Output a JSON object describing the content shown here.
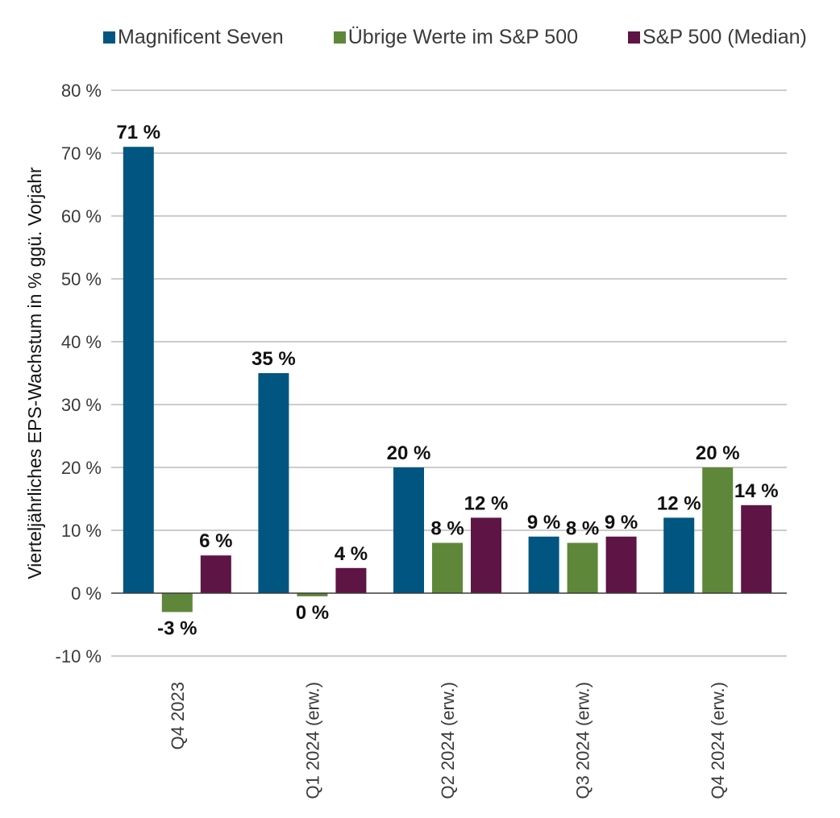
{
  "chart_data": {
    "type": "bar",
    "categories": [
      "Q4 2023",
      "Q1 2024 (erw.)",
      "Q2 2024 (erw.)",
      "Q3 2024 (erw.)",
      "Q4 2024 (erw.)"
    ],
    "series": [
      {
        "name": "Magnificent Seven",
        "color": "#005680",
        "values": [
          71,
          35,
          20,
          9,
          12
        ],
        "labels": [
          "71 %",
          "35 %",
          "20 %",
          "9 %",
          "12 %"
        ]
      },
      {
        "name": "Übrige Werte im S&P 500",
        "color": "#5f873a",
        "values": [
          -3,
          -0.5,
          8,
          8,
          20
        ],
        "labels": [
          "-3 %",
          "0 %",
          "8 %",
          "8 %",
          "20 %"
        ]
      },
      {
        "name": "S&P 500 (Median)",
        "color": "#5e1444",
        "values": [
          6,
          4,
          12,
          9,
          14
        ],
        "labels": [
          "6 %",
          "4 %",
          "12 %",
          "9 %",
          "14 %"
        ]
      }
    ],
    "ylabel": "Vierteljährliches EPS-Wachstum in % ggü. Vorjahr",
    "xlabel": "",
    "ylim": [
      -10,
      80
    ],
    "yticks": [
      80,
      70,
      60,
      50,
      40,
      30,
      20,
      10,
      0,
      -10
    ],
    "ytick_labels": [
      "80 %",
      "70 %",
      "60 %",
      "50 %",
      "40 %",
      "30 %",
      "20 %",
      "10 %",
      "0 %",
      "-10 %"
    ],
    "grid": true,
    "legend_position": "top"
  }
}
